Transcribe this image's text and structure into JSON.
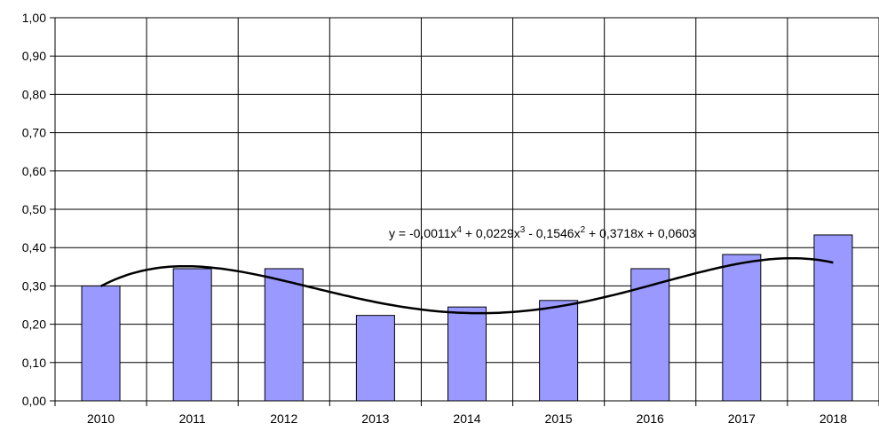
{
  "chart_data": {
    "type": "bar",
    "categories": [
      "2010",
      "2011",
      "2012",
      "2013",
      "2014",
      "2015",
      "2016",
      "2017",
      "2018"
    ],
    "values": [
      0.3,
      0.345,
      0.345,
      0.223,
      0.245,
      0.262,
      0.345,
      0.382,
      0.433
    ],
    "ylim": [
      0,
      1.0
    ],
    "yticks": [
      "0,00",
      "0,10",
      "0,20",
      "0,30",
      "0,40",
      "0,50",
      "0,60",
      "0,70",
      "0,80",
      "0,90",
      "1,00"
    ],
    "grid": true,
    "bar_color": "#9999ff",
    "trendline": {
      "type": "polynomial",
      "order": 4,
      "coefficients": [
        -0.0011,
        0.0229,
        -0.1546,
        0.3718,
        0.0603
      ],
      "equation_label": {
        "prefix": "y = -0,0011x",
        "e4": "4",
        "t2": " + 0,0229x",
        "e3": "3",
        "t3": " - 0,1546x",
        "e2": "2",
        "t4": " + 0,3718x + 0,0603"
      }
    }
  }
}
